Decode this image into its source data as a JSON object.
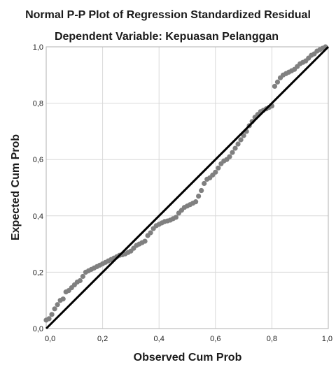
{
  "chart_data": {
    "type": "scatter",
    "title": "Normal P-P Plot of Regression Standardized Residual",
    "subtitle": "Dependent Variable: Kepuasan Pelanggan",
    "xlabel": "Observed Cum Prob",
    "ylabel": "Expected Cum Prob",
    "xlim": [
      0,
      1
    ],
    "ylim": [
      0,
      1
    ],
    "x_ticks": [
      "0,0",
      "0,2",
      "0,4",
      "0,6",
      "0,8",
      "1,0"
    ],
    "y_ticks": [
      "0,0",
      "0,2",
      "0,4",
      "0,6",
      "0,8",
      "1,0"
    ],
    "grid": true,
    "legend": "none",
    "reference_line": {
      "from": [
        0,
        0
      ],
      "to": [
        1,
        1
      ],
      "color": "#000000"
    },
    "colors": {
      "points": "#808080",
      "grid": "#d9d9d9",
      "frame": "#b0b0b0",
      "line": "#000000"
    },
    "points": [
      [
        0.0,
        0.03
      ],
      [
        0.01,
        0.035
      ],
      [
        0.02,
        0.05
      ],
      [
        0.03,
        0.07
      ],
      [
        0.04,
        0.085
      ],
      [
        0.05,
        0.1
      ],
      [
        0.06,
        0.105
      ],
      [
        0.07,
        0.13
      ],
      [
        0.08,
        0.135
      ],
      [
        0.09,
        0.145
      ],
      [
        0.1,
        0.155
      ],
      [
        0.11,
        0.165
      ],
      [
        0.12,
        0.17
      ],
      [
        0.13,
        0.185
      ],
      [
        0.14,
        0.2
      ],
      [
        0.15,
        0.205
      ],
      [
        0.16,
        0.21
      ],
      [
        0.17,
        0.215
      ],
      [
        0.18,
        0.22
      ],
      [
        0.19,
        0.225
      ],
      [
        0.2,
        0.23
      ],
      [
        0.21,
        0.235
      ],
      [
        0.22,
        0.24
      ],
      [
        0.23,
        0.245
      ],
      [
        0.24,
        0.25
      ],
      [
        0.25,
        0.255
      ],
      [
        0.26,
        0.26
      ],
      [
        0.27,
        0.262
      ],
      [
        0.28,
        0.265
      ],
      [
        0.29,
        0.27
      ],
      [
        0.3,
        0.275
      ],
      [
        0.31,
        0.285
      ],
      [
        0.32,
        0.295
      ],
      [
        0.33,
        0.3
      ],
      [
        0.34,
        0.305
      ],
      [
        0.35,
        0.31
      ],
      [
        0.36,
        0.33
      ],
      [
        0.37,
        0.34
      ],
      [
        0.38,
        0.355
      ],
      [
        0.39,
        0.365
      ],
      [
        0.4,
        0.37
      ],
      [
        0.41,
        0.375
      ],
      [
        0.42,
        0.38
      ],
      [
        0.43,
        0.382
      ],
      [
        0.44,
        0.385
      ],
      [
        0.45,
        0.39
      ],
      [
        0.46,
        0.395
      ],
      [
        0.47,
        0.41
      ],
      [
        0.48,
        0.42
      ],
      [
        0.49,
        0.43
      ],
      [
        0.5,
        0.435
      ],
      [
        0.51,
        0.44
      ],
      [
        0.52,
        0.445
      ],
      [
        0.53,
        0.45
      ],
      [
        0.54,
        0.47
      ],
      [
        0.55,
        0.49
      ],
      [
        0.56,
        0.515
      ],
      [
        0.57,
        0.53
      ],
      [
        0.58,
        0.535
      ],
      [
        0.59,
        0.545
      ],
      [
        0.6,
        0.555
      ],
      [
        0.61,
        0.57
      ],
      [
        0.62,
        0.585
      ],
      [
        0.63,
        0.595
      ],
      [
        0.64,
        0.6
      ],
      [
        0.65,
        0.61
      ],
      [
        0.66,
        0.625
      ],
      [
        0.67,
        0.64
      ],
      [
        0.68,
        0.655
      ],
      [
        0.69,
        0.67
      ],
      [
        0.7,
        0.685
      ],
      [
        0.71,
        0.7
      ],
      [
        0.72,
        0.72
      ],
      [
        0.73,
        0.735
      ],
      [
        0.74,
        0.75
      ],
      [
        0.75,
        0.76
      ],
      [
        0.76,
        0.77
      ],
      [
        0.77,
        0.775
      ],
      [
        0.78,
        0.78
      ],
      [
        0.79,
        0.785
      ],
      [
        0.8,
        0.79
      ],
      [
        0.81,
        0.86
      ],
      [
        0.82,
        0.875
      ],
      [
        0.83,
        0.89
      ],
      [
        0.84,
        0.9
      ],
      [
        0.85,
        0.905
      ],
      [
        0.86,
        0.91
      ],
      [
        0.87,
        0.915
      ],
      [
        0.88,
        0.92
      ],
      [
        0.89,
        0.93
      ],
      [
        0.9,
        0.94
      ],
      [
        0.91,
        0.945
      ],
      [
        0.92,
        0.95
      ],
      [
        0.93,
        0.96
      ],
      [
        0.94,
        0.97
      ],
      [
        0.95,
        0.975
      ],
      [
        0.96,
        0.985
      ],
      [
        0.97,
        0.99
      ],
      [
        0.98,
        0.995
      ],
      [
        0.99,
        1.0
      ]
    ]
  }
}
